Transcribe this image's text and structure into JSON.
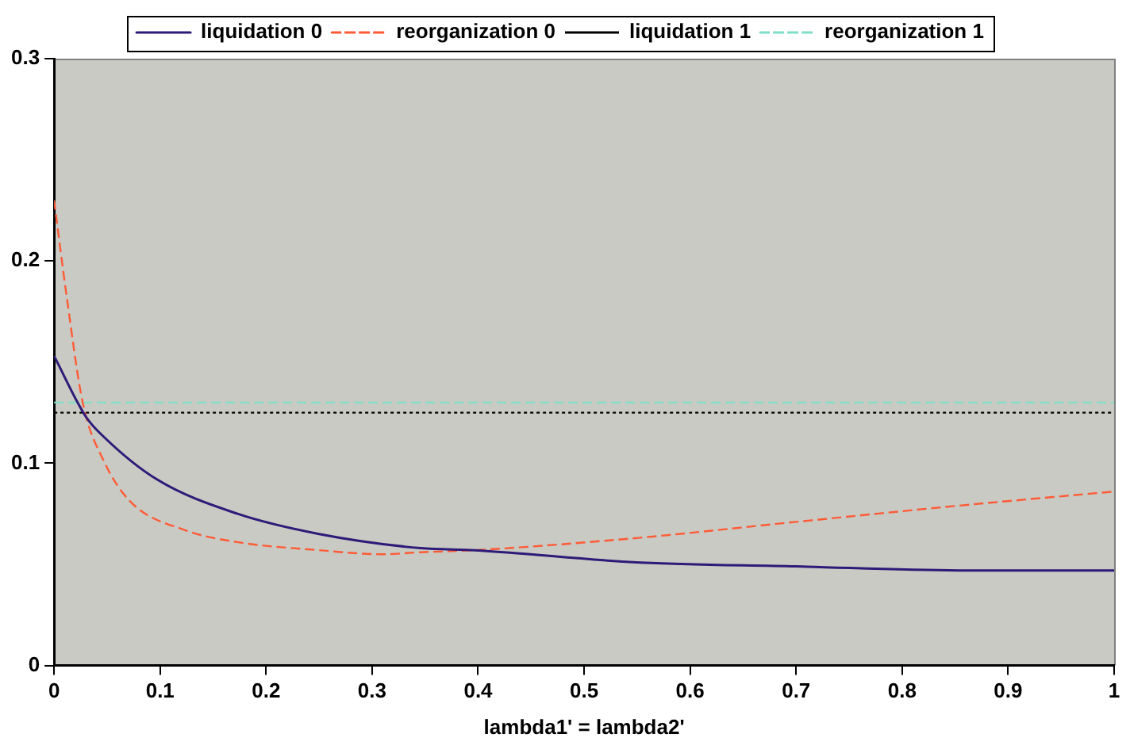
{
  "chart_data": {
    "type": "line",
    "xlabel": "lambda1' = lambda2'",
    "xlim": [
      0,
      1
    ],
    "xticks": [
      0,
      0.1,
      0.2,
      0.3,
      0.4,
      0.5,
      0.6,
      0.7,
      0.8,
      0.9,
      1
    ],
    "ylim": [
      0,
      0.3
    ],
    "yticks": [
      0,
      0.1,
      0.2,
      0.3
    ],
    "grid": false,
    "legend": "top",
    "marker": "none",
    "series": [
      {
        "name": "liquidation 0",
        "color": "#2e1a78",
        "line_style": "solid",
        "x": [
          0,
          0.03,
          0.047,
          0.097,
          0.173,
          0.25,
          0.346,
          0.397,
          0.549,
          0.7,
          0.853,
          1
        ],
        "values": [
          0.153,
          0.123,
          0.113,
          0.092,
          0.075,
          0.065,
          0.058,
          0.057,
          0.051,
          0.049,
          0.047,
          0.047
        ]
      },
      {
        "name": "reorganization 0",
        "color": "#ff5a36",
        "line_style": "dashed",
        "x": [
          0,
          0.012,
          0.027,
          0.047,
          0.072,
          0.123,
          0.173,
          0.25,
          0.31,
          0.346,
          0.397,
          0.549,
          0.7,
          0.853,
          1
        ],
        "values": [
          0.23,
          0.182,
          0.13,
          0.101,
          0.081,
          0.067,
          0.061,
          0.057,
          0.055,
          0.056,
          0.057,
          0.063,
          0.071,
          0.079,
          0.086
        ]
      },
      {
        "name": "liquidation 1",
        "color": "#000000",
        "line_style": "dotted",
        "x": [
          0,
          1
        ],
        "values": [
          0.125,
          0.125
        ]
      },
      {
        "name": "reorganization 1",
        "color": "#7fe0c8",
        "line_style": "dashed",
        "x": [
          0,
          1
        ],
        "values": [
          0.13,
          0.13
        ]
      }
    ]
  }
}
